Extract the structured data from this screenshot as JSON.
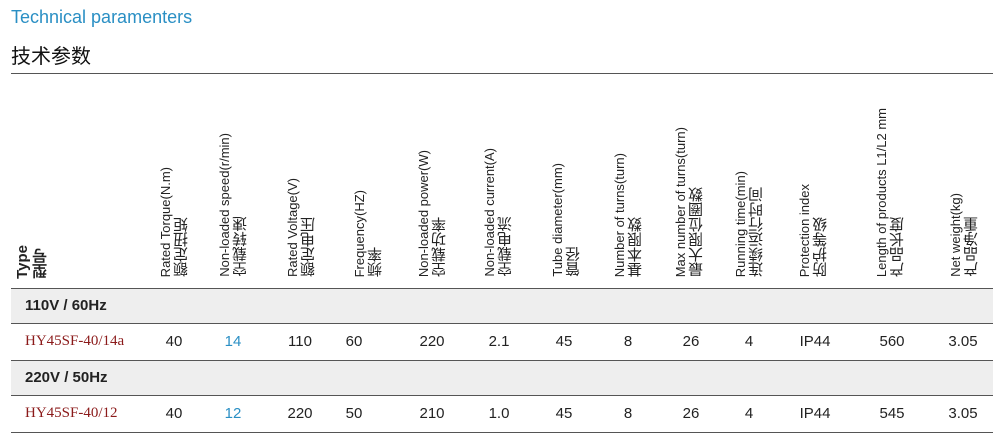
{
  "header": {
    "title_en": "Technical paramenters",
    "title_zh": "技术参数"
  },
  "columns": [
    {
      "en": "Type",
      "zh": "型号"
    },
    {
      "en": "Rated Torque(N.m)",
      "zh": "额定扭矩"
    },
    {
      "en": "Non-loaded speed(r/min)",
      "zh": "空载转速"
    },
    {
      "en": "Rated Voltage(V)",
      "zh": "额定电压"
    },
    {
      "en": "Frequency(HZ)",
      "zh": "频率"
    },
    {
      "en": "Non-loaded power(W)",
      "zh": "空载功率"
    },
    {
      "en": "Non-loaded current(A)",
      "zh": "空载电流"
    },
    {
      "en": "Tube diameter(mm)",
      "zh": "管径"
    },
    {
      "en": "Number of turns(turn)",
      "zh": "基本限数"
    },
    {
      "en": "Max number of turns(turn)",
      "zh": "最大限位圈数"
    },
    {
      "en": "Running time(min)",
      "zh": "连续运行时间"
    },
    {
      "en": "Protection index",
      "zh": "防护等级"
    },
    {
      "en": "Length of products L1/L2 mm",
      "zh": "产品长度"
    },
    {
      "en": "Net weight(kg)",
      "zh": "产品净重"
    }
  ],
  "groups": [
    {
      "label": "110V / 60Hz",
      "row": {
        "model": "HY45SF-40/14a",
        "values": [
          "40",
          "14",
          "110",
          "60",
          "220",
          "2.1",
          "45",
          "8",
          "26",
          "4",
          "IP44",
          "560",
          "3.05"
        ]
      }
    },
    {
      "label": "220V / 50Hz",
      "row": {
        "model": "HY45SF-40/12",
        "values": [
          "40",
          "12",
          "220",
          "50",
          "210",
          "1.0",
          "45",
          "8",
          "26",
          "4",
          "IP44",
          "545",
          "3.05"
        ]
      }
    }
  ],
  "colors": {
    "title_en": "#2a8fc4",
    "model": "#8b1a1a",
    "highlight": "#2a8fc4",
    "band": "#eeeeee"
  }
}
